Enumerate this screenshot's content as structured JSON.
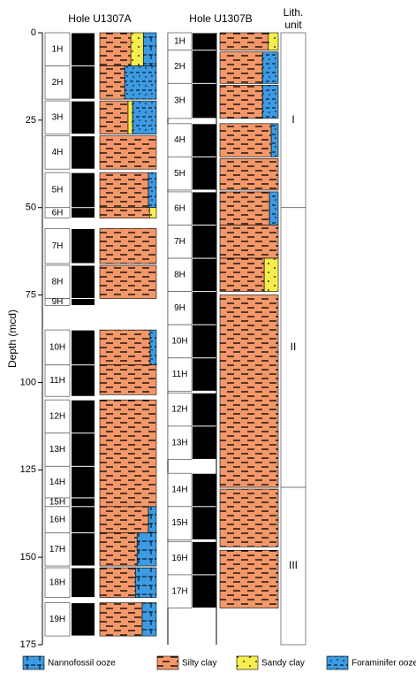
{
  "chart_data": {
    "type": "lithology",
    "y_label": "Depth (mcd)",
    "ylim": [
      0,
      175
    ],
    "yticks": [
      0,
      25,
      50,
      75,
      100,
      125,
      150,
      175
    ],
    "legend": [
      {
        "name": "Nannofossil ooze",
        "color": "#3d9be3"
      },
      {
        "name": "Silty clay",
        "color": "#f4986a"
      },
      {
        "name": "Sandy clay",
        "color": "#f6ee4e"
      },
      {
        "name": "Foraminifer ooze",
        "color": "#3d9be3"
      }
    ],
    "holes": [
      {
        "title": "Hole U1307A",
        "cores": [
          {
            "label": "1H",
            "top": 0,
            "bottom": 9.5
          },
          {
            "label": "2H",
            "top": 9.5,
            "bottom": 19
          },
          {
            "label": "3H",
            "top": 19.5,
            "bottom": 29
          },
          {
            "label": "4H",
            "top": 29.5,
            "bottom": 39
          },
          {
            "label": "5H",
            "top": 40,
            "bottom": 50
          },
          {
            "label": "6H",
            "top": 50,
            "bottom": 53
          },
          {
            "label": "7H",
            "top": 56,
            "bottom": 66
          },
          {
            "label": "8H",
            "top": 66.5,
            "bottom": 76
          },
          {
            "label": "9H",
            "top": 76,
            "bottom": 78
          },
          {
            "label": "10H",
            "top": 85,
            "bottom": 95
          },
          {
            "label": "11H",
            "top": 95,
            "bottom": 104
          },
          {
            "label": "12H",
            "top": 105,
            "bottom": 114.5
          },
          {
            "label": "13H",
            "top": 114.5,
            "bottom": 124
          },
          {
            "label": "14H",
            "top": 124,
            "bottom": 133
          },
          {
            "label": "15H",
            "top": 133,
            "bottom": 135.5
          },
          {
            "label": "16H",
            "top": 135.5,
            "bottom": 143
          },
          {
            "label": "17H",
            "top": 143,
            "bottom": 152.5
          },
          {
            "label": "18H",
            "top": 153,
            "bottom": 161.5
          },
          {
            "label": "19H",
            "top": 163,
            "bottom": 172.5
          }
        ],
        "lithology": [
          {
            "top": 0,
            "bottom": 9.5,
            "parts": [
              {
                "lith": 1,
                "width": 55
              },
              {
                "lith": 2,
                "width": 22
              },
              {
                "lith": 0,
                "width": 23
              }
            ]
          },
          {
            "top": 9.5,
            "bottom": 19,
            "parts": [
              {
                "lith": 1,
                "width": 44
              },
              {
                "lith": 3,
                "width": 56
              }
            ]
          },
          {
            "top": 19.5,
            "bottom": 29,
            "parts": [
              {
                "lith": 1,
                "width": 50
              },
              {
                "lith": 2,
                "width": 8
              },
              {
                "lith": 3,
                "width": 42
              }
            ]
          },
          {
            "top": 29.5,
            "bottom": 39,
            "parts": [
              {
                "lith": 1,
                "width": 100
              }
            ]
          },
          {
            "top": 40,
            "bottom": 50,
            "parts": [
              {
                "lith": 1,
                "width": 86
              },
              {
                "lith": 3,
                "width": 14
              }
            ]
          },
          {
            "top": 50,
            "bottom": 53,
            "parts": [
              {
                "lith": 1,
                "width": 88
              },
              {
                "lith": 2,
                "width": 12
              }
            ]
          },
          {
            "top": 56,
            "bottom": 66,
            "parts": [
              {
                "lith": 1,
                "width": 100
              }
            ]
          },
          {
            "top": 66.5,
            "bottom": 76,
            "parts": [
              {
                "lith": 1,
                "width": 100
              }
            ]
          },
          {
            "top": 85,
            "bottom": 95,
            "parts": [
              {
                "lith": 1,
                "width": 89
              },
              {
                "lith": 3,
                "width": 11
              }
            ]
          },
          {
            "top": 95,
            "bottom": 103.5,
            "parts": [
              {
                "lith": 1,
                "width": 100
              }
            ]
          },
          {
            "top": 105,
            "bottom": 135.5,
            "parts": [
              {
                "lith": 1,
                "width": 100
              }
            ]
          },
          {
            "top": 135.5,
            "bottom": 143,
            "parts": [
              {
                "lith": 1,
                "width": 86
              },
              {
                "lith": 0,
                "width": 14
              }
            ]
          },
          {
            "top": 143,
            "bottom": 152.5,
            "parts": [
              {
                "lith": 1,
                "width": 66
              },
              {
                "lith": 0,
                "width": 34
              }
            ]
          },
          {
            "top": 153,
            "bottom": 161.5,
            "parts": [
              {
                "lith": 1,
                "width": 63
              },
              {
                "lith": 0,
                "width": 37
              }
            ]
          },
          {
            "top": 163,
            "bottom": 172.5,
            "parts": [
              {
                "lith": 1,
                "width": 75
              },
              {
                "lith": 0,
                "width": 25
              }
            ]
          }
        ]
      },
      {
        "title": "Hole U1307B",
        "cores": [
          {
            "label": "1H",
            "top": 0,
            "bottom": 5
          },
          {
            "label": "2H",
            "top": 5,
            "bottom": 14.5
          },
          {
            "label": "3H",
            "top": 14.5,
            "bottom": 24.5
          },
          {
            "label": "4H",
            "top": 26,
            "bottom": 35.5
          },
          {
            "label": "5H",
            "top": 35.5,
            "bottom": 45
          },
          {
            "label": "6H",
            "top": 45.5,
            "bottom": 55
          },
          {
            "label": "7H",
            "top": 55,
            "bottom": 64.5
          },
          {
            "label": "8H",
            "top": 64.5,
            "bottom": 74
          },
          {
            "label": "9H",
            "top": 74,
            "bottom": 83.5
          },
          {
            "label": "10H",
            "top": 83.5,
            "bottom": 93
          },
          {
            "label": "11H",
            "top": 93,
            "bottom": 102.5
          },
          {
            "label": "12H",
            "top": 103,
            "bottom": 112.5
          },
          {
            "label": "13H",
            "top": 112.5,
            "bottom": 122
          },
          {
            "label": "14H",
            "top": 126,
            "bottom": 135.5
          },
          {
            "label": "15H",
            "top": 135.5,
            "bottom": 145
          },
          {
            "label": "16H",
            "top": 145.5,
            "bottom": 155
          },
          {
            "label": "17H",
            "top": 155,
            "bottom": 164.5
          }
        ],
        "lithology": [
          {
            "top": 0,
            "bottom": 5,
            "parts": [
              {
                "lith": 1,
                "width": 83
              },
              {
                "lith": 2,
                "width": 17
              }
            ]
          },
          {
            "top": 5.5,
            "bottom": 14.5,
            "parts": [
              {
                "lith": 1,
                "width": 73
              },
              {
                "lith": 3,
                "width": 27
              }
            ]
          },
          {
            "top": 15,
            "bottom": 24.5,
            "parts": [
              {
                "lith": 1,
                "width": 73
              },
              {
                "lith": 3,
                "width": 27
              }
            ]
          },
          {
            "top": 26,
            "bottom": 35.5,
            "parts": [
              {
                "lith": 1,
                "width": 88
              },
              {
                "lith": 3,
                "width": 12
              }
            ]
          },
          {
            "top": 36,
            "bottom": 45,
            "parts": [
              {
                "lith": 1,
                "width": 100
              }
            ]
          },
          {
            "top": 45.5,
            "bottom": 55,
            "parts": [
              {
                "lith": 1,
                "width": 85
              },
              {
                "lith": 3,
                "width": 15
              }
            ]
          },
          {
            "top": 55,
            "bottom": 64.5,
            "parts": [
              {
                "lith": 1,
                "width": 100
              }
            ]
          },
          {
            "top": 64.5,
            "bottom": 74,
            "parts": [
              {
                "lith": 1,
                "width": 76
              },
              {
                "lith": 2,
                "width": 24
              }
            ]
          },
          {
            "top": 75,
            "bottom": 130,
            "parts": [
              {
                "lith": 1,
                "width": 100
              }
            ]
          },
          {
            "top": 130.5,
            "bottom": 147,
            "parts": [
              {
                "lith": 1,
                "width": 100
              }
            ]
          },
          {
            "top": 148,
            "bottom": 164.5,
            "parts": [
              {
                "lith": 1,
                "width": 100
              }
            ]
          }
        ]
      }
    ],
    "units_title": [
      "Lith.",
      "unit"
    ],
    "units": [
      {
        "label": "I",
        "top": 0,
        "bottom": 50
      },
      {
        "label": "II",
        "top": 50,
        "bottom": 130
      },
      {
        "label": "III",
        "top": 130,
        "bottom": 175
      }
    ]
  }
}
